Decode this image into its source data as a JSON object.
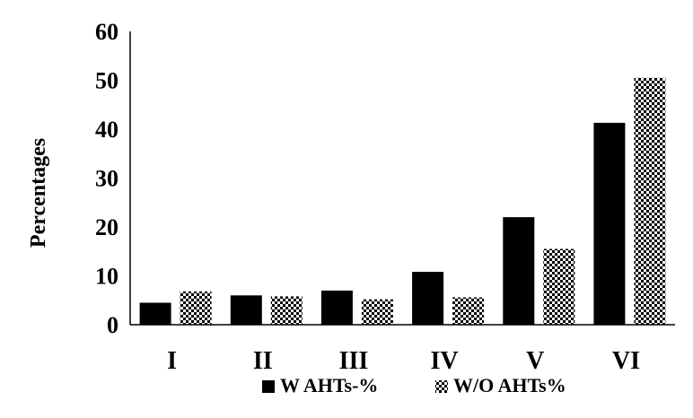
{
  "chart_data": {
    "type": "bar",
    "title": "",
    "xlabel": "",
    "ylabel": "Percentages",
    "ylim": [
      0,
      60
    ],
    "yticks": [
      0,
      10,
      20,
      30,
      40,
      50,
      60
    ],
    "categories": [
      "I",
      "II",
      "III",
      "IV",
      "V",
      "VI"
    ],
    "series": [
      {
        "name": "W AHTs-%",
        "values": [
          4.5,
          6.0,
          7.0,
          10.8,
          22.0,
          41.3
        ],
        "fill": "solid",
        "color": "#000000"
      },
      {
        "name": "W/O AHTs%",
        "values": [
          6.8,
          5.8,
          5.2,
          5.6,
          15.5,
          50.5
        ],
        "fill": "checker",
        "color": "#000000"
      }
    ],
    "grid": false,
    "legend_position": "bottom"
  }
}
